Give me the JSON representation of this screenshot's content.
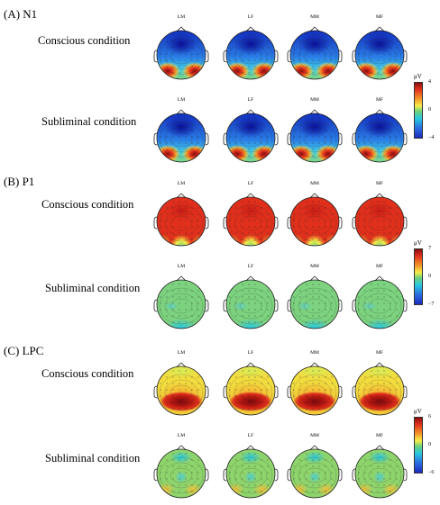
{
  "electrode_labels": [
    "LM",
    "LF",
    "MM",
    "MF"
  ],
  "unit": "μV",
  "colors": {
    "neg": "#1a2bbf",
    "cyan": "#28c8e0",
    "green": "#6fd07a",
    "yellow": "#f6ee4a",
    "orange": "#f49a2a",
    "red": "#e0301c",
    "darkred": "#8a0d10"
  },
  "panels": [
    {
      "id": "A",
      "label": "(A)  N1",
      "conditions": [
        {
          "name": "Conscious condition",
          "pattern": "n1"
        },
        {
          "name": "Subliminal condition",
          "pattern": "n1"
        }
      ],
      "colorbar": {
        "max": "4",
        "mid": "0",
        "min": "−4"
      }
    },
    {
      "id": "B",
      "label": "(B)  P1",
      "conditions": [
        {
          "name": "Conscious condition",
          "pattern": "p1c"
        },
        {
          "name": "Subliminal condition",
          "pattern": "p1s"
        }
      ],
      "colorbar": {
        "max": "7",
        "mid": "0",
        "min": "−7"
      }
    },
    {
      "id": "C",
      "label": "(C)  LPC",
      "conditions": [
        {
          "name": "Conscious condition",
          "pattern": "lpcc"
        },
        {
          "name": "Subliminal condition",
          "pattern": "lpcs"
        }
      ],
      "colorbar": {
        "max": "6",
        "mid": "0",
        "min": "−6"
      }
    }
  ]
}
